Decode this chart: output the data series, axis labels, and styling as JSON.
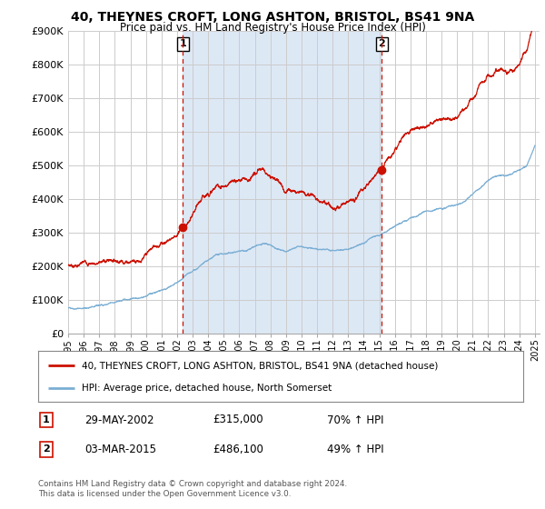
{
  "title_line1": "40, THEYNES CROFT, LONG ASHTON, BRISTOL, BS41 9NA",
  "title_line2": "Price paid vs. HM Land Registry's House Price Index (HPI)",
  "ylim": [
    0,
    900000
  ],
  "yticks": [
    0,
    100000,
    200000,
    300000,
    400000,
    500000,
    600000,
    700000,
    800000,
    900000
  ],
  "ytick_labels": [
    "£0",
    "£100K",
    "£200K",
    "£300K",
    "£400K",
    "£500K",
    "£600K",
    "£700K",
    "£800K",
    "£900K"
  ],
  "hpi_color": "#7bafd4",
  "price_color": "#cc1100",
  "shade_color": "#dde8f5",
  "sale1_yr": 2002.38,
  "sale1_price": 315000,
  "sale1_label": "1",
  "sale2_yr": 2015.17,
  "sale2_price": 486100,
  "sale2_label": "2",
  "legend_line1": "40, THEYNES CROFT, LONG ASHTON, BRISTOL, BS41 9NA (detached house)",
  "legend_line2": "HPI: Average price, detached house, North Somerset",
  "table_row1_num": "1",
  "table_row1_date": "29-MAY-2002",
  "table_row1_price": "£315,000",
  "table_row1_hpi": "70% ↑ HPI",
  "table_row2_num": "2",
  "table_row2_date": "03-MAR-2015",
  "table_row2_price": "£486,100",
  "table_row2_hpi": "49% ↑ HPI",
  "footnote": "Contains HM Land Registry data © Crown copyright and database right 2024.\nThis data is licensed under the Open Government Licence v3.0.",
  "background_color": "#ffffff",
  "grid_color": "#cccccc"
}
